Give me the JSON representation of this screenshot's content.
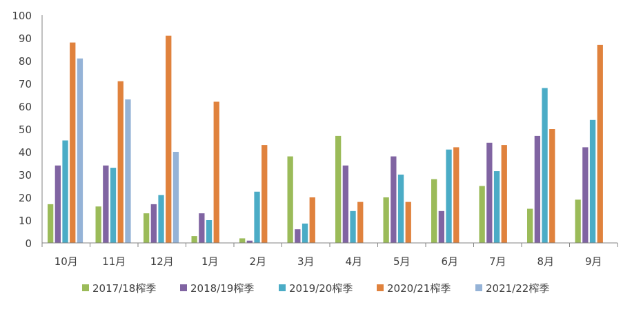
{
  "chart_data": {
    "type": "bar",
    "title": "",
    "xlabel": "",
    "ylabel": "",
    "ylim": [
      0,
      100
    ],
    "yticks": [
      0,
      10,
      20,
      30,
      40,
      50,
      60,
      70,
      80,
      90,
      100
    ],
    "grid": false,
    "legend_position": "bottom",
    "categories": [
      "10月",
      "11月",
      "12月",
      "1月",
      "2月",
      "3月",
      "4月",
      "5月",
      "6月",
      "7月",
      "8月",
      "9月"
    ],
    "series": [
      {
        "name": "2017/18榨季",
        "color": "#9BBB59",
        "values": [
          17,
          16,
          13,
          3,
          2,
          38,
          47,
          20,
          28,
          25,
          15,
          19
        ]
      },
      {
        "name": "2018/19榨季",
        "color": "#8064A2",
        "values": [
          34,
          34,
          17,
          13,
          1,
          6,
          34,
          38,
          14,
          44,
          47,
          42
        ]
      },
      {
        "name": "2019/20榨季",
        "color": "#4BACC6",
        "values": [
          45,
          33,
          21,
          10,
          22.5,
          8.5,
          14,
          30,
          41,
          31.5,
          68,
          54
        ]
      },
      {
        "name": "2020/21榨季",
        "color": "#E0823D",
        "values": [
          88,
          71,
          91,
          62,
          43,
          20,
          18,
          18,
          42,
          43,
          50,
          87
        ]
      },
      {
        "name": "2021/22榨季",
        "color": "#95B3D7",
        "values": [
          81,
          63,
          40,
          null,
          null,
          null,
          null,
          null,
          null,
          null,
          null,
          null
        ]
      }
    ]
  }
}
